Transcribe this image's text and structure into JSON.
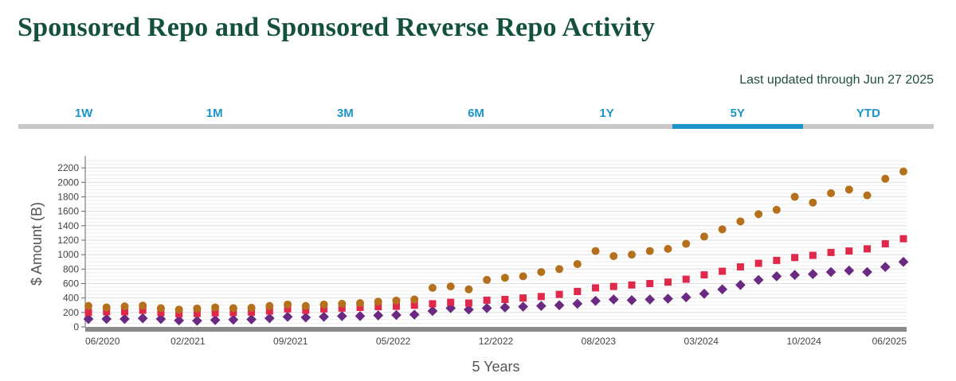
{
  "title": "Sponsored Repo and Sponsored Reverse Repo Activity",
  "last_updated": "Last updated through Jun 27 2025",
  "tabs": [
    {
      "label": "1W",
      "active": false
    },
    {
      "label": "1M",
      "active": false
    },
    {
      "label": "3M",
      "active": false
    },
    {
      "label": "6M",
      "active": false
    },
    {
      "label": "1Y",
      "active": false
    },
    {
      "label": "5Y",
      "active": true
    },
    {
      "label": "YTD",
      "active": false
    }
  ],
  "colors": {
    "title": "#14503e",
    "tab_text": "#1b95c9",
    "tab_active_bar": "#1b95c9",
    "tab_bar": "#c8c8c8",
    "total_series": "#b5701c",
    "repo_series": "#e0284a",
    "reverse_repo_series": "#6b2a82"
  },
  "chart_data": {
    "type": "scatter",
    "title": "",
    "xlabel": "5 Years",
    "ylabel": "$ Amount (B)",
    "x_ticks": [
      "06/2020",
      "02/2021",
      "09/2021",
      "05/2022",
      "12/2022",
      "08/2023",
      "03/2024",
      "10/2024",
      "06/2025"
    ],
    "y_ticks": [
      0,
      200,
      400,
      600,
      800,
      1000,
      1200,
      1400,
      1600,
      1800,
      2000,
      2200
    ],
    "ylim": [
      0,
      2300
    ],
    "grid": true,
    "series": [
      {
        "marker": "circle",
        "color": "#b5701c",
        "values": [
          290,
          270,
          285,
          295,
          260,
          240,
          255,
          270,
          260,
          265,
          290,
          310,
          290,
          310,
          320,
          330,
          350,
          365,
          380,
          540,
          560,
          520,
          650,
          680,
          700,
          760,
          800,
          870,
          1050,
          980,
          1000,
          1050,
          1080,
          1150,
          1250,
          1350,
          1460,
          1560,
          1620,
          1800,
          1720,
          1850,
          1900,
          1820,
          2050,
          2150
        ]
      },
      {
        "marker": "square",
        "color": "#e0284a",
        "values": [
          200,
          210,
          210,
          230,
          200,
          180,
          185,
          195,
          200,
          205,
          220,
          250,
          230,
          250,
          260,
          270,
          280,
          285,
          300,
          320,
          340,
          330,
          370,
          380,
          400,
          420,
          450,
          490,
          540,
          560,
          580,
          600,
          620,
          660,
          720,
          770,
          830,
          880,
          920,
          960,
          990,
          1030,
          1050,
          1080,
          1150,
          1220
        ]
      },
      {
        "marker": "diamond",
        "color": "#6b2a82",
        "values": [
          110,
          110,
          110,
          120,
          110,
          90,
          85,
          95,
          100,
          105,
          120,
          140,
          130,
          140,
          150,
          150,
          160,
          165,
          170,
          220,
          260,
          240,
          260,
          270,
          280,
          290,
          300,
          320,
          360,
          380,
          370,
          380,
          390,
          410,
          460,
          520,
          580,
          650,
          700,
          720,
          730,
          760,
          780,
          760,
          830,
          900
        ]
      }
    ]
  }
}
